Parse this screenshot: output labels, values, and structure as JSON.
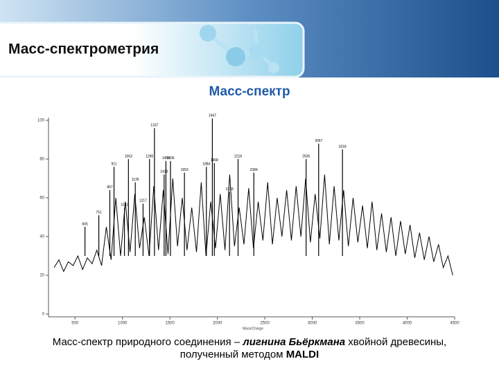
{
  "header": {
    "title": "Масс-спектрометрия"
  },
  "chart_data": {
    "type": "line",
    "title": "Масс-спектр",
    "x_label": "Mass/Charge",
    "xlim": [
      250,
      4500
    ],
    "xticks": [
      500,
      1000,
      1500,
      2000,
      2500,
      3000,
      3500,
      4000,
      4500
    ],
    "ylim": [
      0,
      100
    ],
    "yticks": [
      0,
      20,
      40,
      60,
      80,
      100
    ],
    "series": [
      {
        "color": "#000000",
        "x": [
          280,
          330,
          380,
          430,
          480,
          530,
          580,
          630,
          680,
          730,
          780,
          830,
          880,
          930,
          980,
          1030,
          1080,
          1130,
          1180,
          1230,
          1280,
          1330,
          1380,
          1430,
          1480,
          1530,
          1580,
          1630,
          1680,
          1730,
          1780,
          1830,
          1880,
          1930,
          1980,
          2030,
          2080,
          2130,
          2180,
          2230,
          2280,
          2330,
          2380,
          2430,
          2480,
          2530,
          2580,
          2630,
          2680,
          2730,
          2780,
          2830,
          2880,
          2930,
          2980,
          3030,
          3080,
          3130,
          3180,
          3230,
          3280,
          3330,
          3380,
          3430,
          3480,
          3530,
          3580,
          3630,
          3680,
          3730,
          3780,
          3830,
          3880,
          3930,
          3980,
          4030,
          4080,
          4130,
          4180,
          4230,
          4280,
          4330,
          4380,
          4430,
          4480
        ],
        "values": [
          24,
          28,
          22,
          27,
          25,
          30,
          23,
          29,
          26,
          33,
          25,
          45,
          28,
          60,
          30,
          58,
          32,
          62,
          34,
          50,
          30,
          66,
          33,
          64,
          31,
          70,
          35,
          60,
          33,
          55,
          32,
          68,
          30,
          58,
          34,
          62,
          33,
          72,
          35,
          55,
          36,
          65,
          34,
          58,
          38,
          68,
          36,
          60,
          40,
          64,
          38,
          66,
          40,
          70,
          37,
          62,
          39,
          72,
          36,
          66,
          38,
          64,
          35,
          60,
          37,
          56,
          34,
          58,
          33,
          52,
          32,
          50,
          30,
          48,
          31,
          46,
          29,
          42,
          28,
          40,
          27,
          36,
          24,
          30,
          20
        ]
      }
    ],
    "peaks": {
      "x": [
        605,
        751,
        867,
        911,
        1021,
        1063,
        1135,
        1217,
        1285,
        1337,
        1439,
        1458,
        1506,
        1653,
        1884,
        1947,
        1968,
        2128,
        2218,
        2384,
        2935,
        3067,
        3318
      ],
      "values": [
        45,
        51,
        64,
        76,
        55,
        80,
        68,
        57,
        80,
        96,
        72,
        79,
        79,
        73,
        76,
        101,
        78,
        63,
        80,
        73,
        80,
        88,
        85
      ]
    }
  },
  "caption": {
    "part1": "Масс-спектр природного соединения – ",
    "part2": "лигнина Бьёркмана",
    "part3": " хвойной древесины,",
    "part4": "полученный методом ",
    "part5": "MALDI"
  }
}
